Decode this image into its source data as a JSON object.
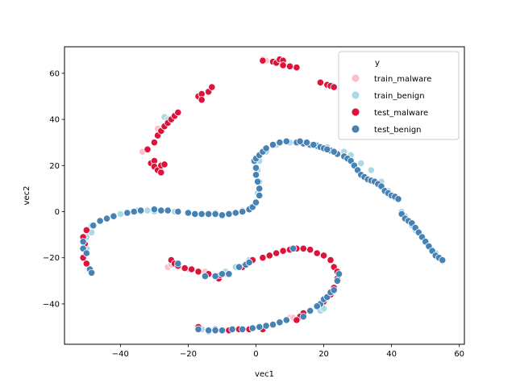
{
  "chart_data": {
    "type": "scatter",
    "title": "",
    "xlabel": "vec1",
    "ylabel": "vec2",
    "xlim": [
      -56.5,
      61.5
    ],
    "ylim": [
      -57.5,
      71.5
    ],
    "xticks": [
      -40,
      -20,
      0,
      20,
      40,
      60
    ],
    "yticks": [
      -40,
      -20,
      0,
      20,
      40,
      60
    ],
    "grid": false,
    "legend": {
      "title": "y",
      "position": "top-right"
    },
    "series": [
      {
        "name": "train_malware",
        "color": "#ffc0cb",
        "points": [
          [
            -33.5,
            26
          ],
          [
            -29,
            36
          ],
          [
            -25,
            40.5
          ],
          [
            -24,
            42
          ],
          [
            2,
            66
          ],
          [
            3,
            65.5
          ],
          [
            -26,
            -24
          ],
          [
            -25,
            -23
          ],
          [
            -20,
            -25
          ],
          [
            -15,
            -26
          ],
          [
            -9,
            -27
          ],
          [
            10,
            -46
          ],
          [
            11,
            -46
          ],
          [
            12,
            -47
          ],
          [
            -17,
            -51
          ]
        ]
      },
      {
        "name": "train_benign",
        "color": "#add8e6",
        "points": [
          [
            -50,
            -11
          ],
          [
            -50,
            -16
          ],
          [
            -48.5,
            -6
          ],
          [
            -48.5,
            -9
          ],
          [
            -46,
            -4
          ],
          [
            -40,
            -1
          ],
          [
            -34,
            0
          ],
          [
            -32,
            0.5
          ],
          [
            -30,
            0
          ],
          [
            -28,
            0.5
          ],
          [
            -24,
            0
          ],
          [
            -20,
            -0.5
          ],
          [
            -16,
            -1
          ],
          [
            -12,
            -0.5
          ],
          [
            -8,
            -1
          ],
          [
            -4,
            0.5
          ],
          [
            -2,
            1
          ],
          [
            0,
            4
          ],
          [
            0.5,
            8
          ],
          [
            1,
            13
          ],
          [
            0.5,
            18
          ],
          [
            1,
            22
          ],
          [
            3,
            26
          ],
          [
            6,
            29
          ],
          [
            10,
            30
          ],
          [
            14,
            30
          ],
          [
            18,
            29
          ],
          [
            21,
            28
          ],
          [
            26,
            26
          ],
          [
            28,
            24.5
          ],
          [
            31,
            21
          ],
          [
            34,
            18
          ],
          [
            37,
            13
          ],
          [
            39,
            9
          ],
          [
            40,
            7
          ],
          [
            41,
            6
          ],
          [
            43,
            0
          ],
          [
            44,
            -2
          ],
          [
            46,
            -6
          ],
          [
            47,
            -8
          ],
          [
            50,
            -13
          ],
          [
            53,
            -18
          ],
          [
            55,
            -21.5
          ],
          [
            -35,
            0.5
          ],
          [
            -27,
            41
          ],
          [
            -26,
            40
          ],
          [
            -16,
            -51
          ],
          [
            -14,
            -52
          ],
          [
            -9,
            -26
          ],
          [
            -6,
            -24
          ],
          [
            -2,
            -21
          ],
          [
            19,
            -43
          ],
          [
            20,
            -42
          ]
        ]
      },
      {
        "name": "test_malware",
        "color": "#dc143c",
        "points": [
          [
            -32,
            27
          ],
          [
            -30,
            30
          ],
          [
            -29,
            33
          ],
          [
            -28,
            35
          ],
          [
            -27,
            37
          ],
          [
            -26,
            38.5
          ],
          [
            -25,
            40
          ],
          [
            -24,
            41.5
          ],
          [
            -23,
            43
          ],
          [
            -31,
            21
          ],
          [
            -30,
            22
          ],
          [
            -30,
            19.5
          ],
          [
            -29,
            18
          ],
          [
            -28,
            20
          ],
          [
            -28,
            17
          ],
          [
            -27,
            20.5
          ],
          [
            -17,
            50
          ],
          [
            -16,
            51
          ],
          [
            -16,
            48.5
          ],
          [
            -14,
            52
          ],
          [
            -13,
            54
          ],
          [
            2,
            65.5
          ],
          [
            5,
            65
          ],
          [
            6,
            64.5
          ],
          [
            7,
            66
          ],
          [
            8,
            65.5
          ],
          [
            8,
            63.5
          ],
          [
            10,
            63
          ],
          [
            12,
            62.5
          ],
          [
            19,
            56
          ],
          [
            21,
            55
          ],
          [
            22,
            54.5
          ],
          [
            23,
            54
          ],
          [
            -51,
            -11
          ],
          [
            -50,
            -8
          ],
          [
            -51,
            -20
          ],
          [
            -50,
            -22.5
          ],
          [
            -50.5,
            -14
          ],
          [
            -25,
            -21
          ],
          [
            -24,
            -22.5
          ],
          [
            -23,
            -23.5
          ],
          [
            -21,
            -24.5
          ],
          [
            -19,
            -25
          ],
          [
            -17,
            -26
          ],
          [
            -14,
            -27
          ],
          [
            -12,
            -28
          ],
          [
            -11,
            -29
          ],
          [
            -10.5,
            -27.5
          ],
          [
            -8,
            -27
          ],
          [
            -4,
            -24
          ],
          [
            -1,
            -21
          ],
          [
            2,
            -20
          ],
          [
            4,
            -19
          ],
          [
            6,
            -18
          ],
          [
            8,
            -17
          ],
          [
            10,
            -16.5
          ],
          [
            12,
            -16
          ],
          [
            14,
            -16
          ],
          [
            16,
            -16.5
          ],
          [
            18,
            -18
          ],
          [
            20,
            -19
          ],
          [
            22,
            -21
          ],
          [
            23,
            -24
          ],
          [
            24,
            -26
          ],
          [
            24,
            -29
          ],
          [
            23,
            -33
          ],
          [
            22,
            -36
          ],
          [
            20,
            -39
          ],
          [
            18,
            -41
          ],
          [
            14,
            -44
          ],
          [
            13,
            -45.5
          ],
          [
            12,
            -47
          ],
          [
            -17,
            -50
          ],
          [
            -8,
            -51.5
          ],
          [
            -5,
            -51
          ],
          [
            -2,
            -51
          ],
          [
            2,
            -51
          ]
        ]
      },
      {
        "name": "test_benign",
        "color": "#4682b4",
        "points": [
          [
            -51,
            -13
          ],
          [
            -51,
            -16
          ],
          [
            -50,
            -18
          ],
          [
            -49,
            -25
          ],
          [
            -48.5,
            -26.5
          ],
          [
            -48,
            -6
          ],
          [
            -46,
            -4
          ],
          [
            -44,
            -3
          ],
          [
            -42,
            -2
          ],
          [
            -38,
            -0.5
          ],
          [
            -36,
            0
          ],
          [
            -34,
            0.5
          ],
          [
            -30,
            1
          ],
          [
            -28,
            0.5
          ],
          [
            -26,
            0.5
          ],
          [
            -23,
            0
          ],
          [
            -20,
            -0.5
          ],
          [
            -18,
            -1
          ],
          [
            -16,
            -1
          ],
          [
            -14,
            -1
          ],
          [
            -12,
            -1
          ],
          [
            -10,
            -1.5
          ],
          [
            -8,
            -1
          ],
          [
            -6,
            -0.5
          ],
          [
            -4,
            0
          ],
          [
            -2,
            1
          ],
          [
            -1,
            2
          ],
          [
            0,
            4
          ],
          [
            1,
            7
          ],
          [
            1,
            10
          ],
          [
            0.5,
            13
          ],
          [
            0,
            16
          ],
          [
            0,
            19
          ],
          [
            -0.5,
            22
          ],
          [
            0,
            23
          ],
          [
            1,
            24.5
          ],
          [
            2,
            26
          ],
          [
            3,
            27.5
          ],
          [
            5,
            29
          ],
          [
            7,
            30
          ],
          [
            9,
            30.5
          ],
          [
            12,
            30
          ],
          [
            14,
            29.5
          ],
          [
            16,
            29
          ],
          [
            18,
            28.5
          ],
          [
            19,
            28
          ],
          [
            20,
            27.5
          ],
          [
            22,
            26.5
          ],
          [
            24,
            25
          ],
          [
            26,
            24
          ],
          [
            27,
            23
          ],
          [
            28,
            22
          ],
          [
            29,
            20
          ],
          [
            30,
            18
          ],
          [
            31,
            16
          ],
          [
            32,
            15
          ],
          [
            33,
            14
          ],
          [
            34,
            13.5
          ],
          [
            35,
            13
          ],
          [
            36,
            12
          ],
          [
            37,
            11
          ],
          [
            38,
            9
          ],
          [
            39,
            8
          ],
          [
            40,
            7
          ],
          [
            41,
            6.5
          ],
          [
            42,
            5.5
          ],
          [
            43,
            -1
          ],
          [
            44,
            -3
          ],
          [
            45,
            -4
          ],
          [
            46,
            -5
          ],
          [
            47,
            -7
          ],
          [
            48,
            -9
          ],
          [
            49,
            -11
          ],
          [
            50,
            -13
          ],
          [
            51,
            -15
          ],
          [
            52,
            -17
          ],
          [
            53,
            -19
          ],
          [
            54,
            -20
          ],
          [
            55,
            -21
          ],
          [
            13,
            30.5
          ],
          [
            15,
            30
          ],
          [
            17,
            29
          ],
          [
            21,
            27
          ],
          [
            23,
            26
          ],
          [
            -17,
            -51
          ],
          [
            -14,
            -51.5
          ],
          [
            -12,
            -51
          ],
          [
            -10,
            -51.5
          ],
          [
            -7,
            -51
          ],
          [
            -4,
            -51
          ],
          [
            -1,
            -50.5
          ],
          [
            1,
            -50
          ],
          [
            3,
            -49.5
          ],
          [
            5,
            -49
          ],
          [
            7,
            -48
          ],
          [
            9,
            -47
          ],
          [
            11,
            -16
          ],
          [
            -15,
            -28
          ],
          [
            -12,
            -28
          ],
          [
            -10,
            -27
          ],
          [
            -8,
            -27
          ],
          [
            -5,
            -24
          ],
          [
            -3,
            -23
          ],
          [
            -2,
            -22
          ],
          [
            19,
            -40
          ],
          [
            20,
            -38
          ],
          [
            21,
            -37
          ],
          [
            22,
            -35
          ],
          [
            23,
            -34
          ],
          [
            24,
            -30
          ],
          [
            24.5,
            -27
          ],
          [
            18,
            -41
          ],
          [
            16,
            -43
          ],
          [
            14,
            -45.5
          ],
          [
            -23,
            -22.5
          ],
          [
            -12,
            -51.5
          ]
        ]
      }
    ]
  }
}
